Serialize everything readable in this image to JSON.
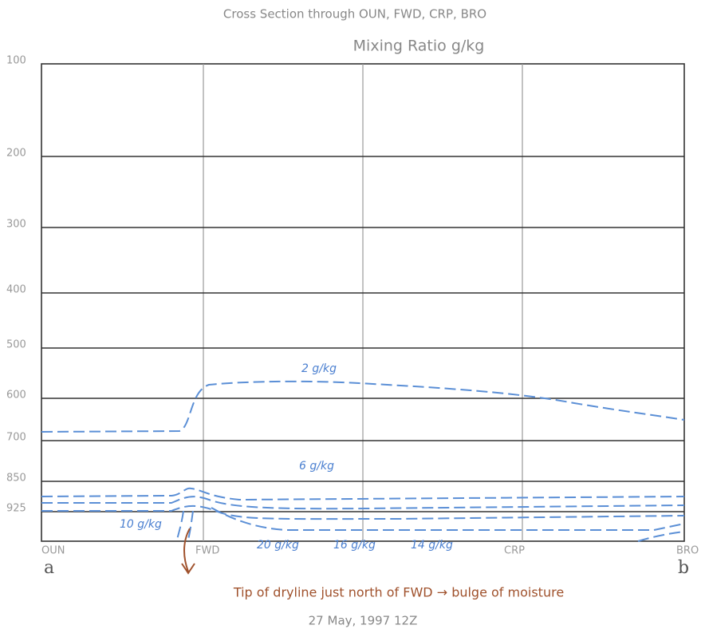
{
  "header": {
    "title": "Cross Section through OUN, FWD, CRP, BRO",
    "subtitle": "Mixing Ratio g/kg"
  },
  "pressure_levels": [
    "100",
    "200",
    "300",
    "400",
    "500",
    "600",
    "700",
    "850",
    "925"
  ],
  "stations": [
    "OUN",
    "FWD",
    "CRP",
    "BRO"
  ],
  "endpoints": [
    "a",
    "b"
  ],
  "contour_labels": [
    "2 g/kg",
    "6 g/kg",
    "10 g/kg",
    "20 g/kg",
    "16 g/kg",
    "14 g/kg"
  ],
  "annotation": "Tip of dryline just north of FWD → bulge of moisture",
  "date": "27 May, 1997   12Z"
}
